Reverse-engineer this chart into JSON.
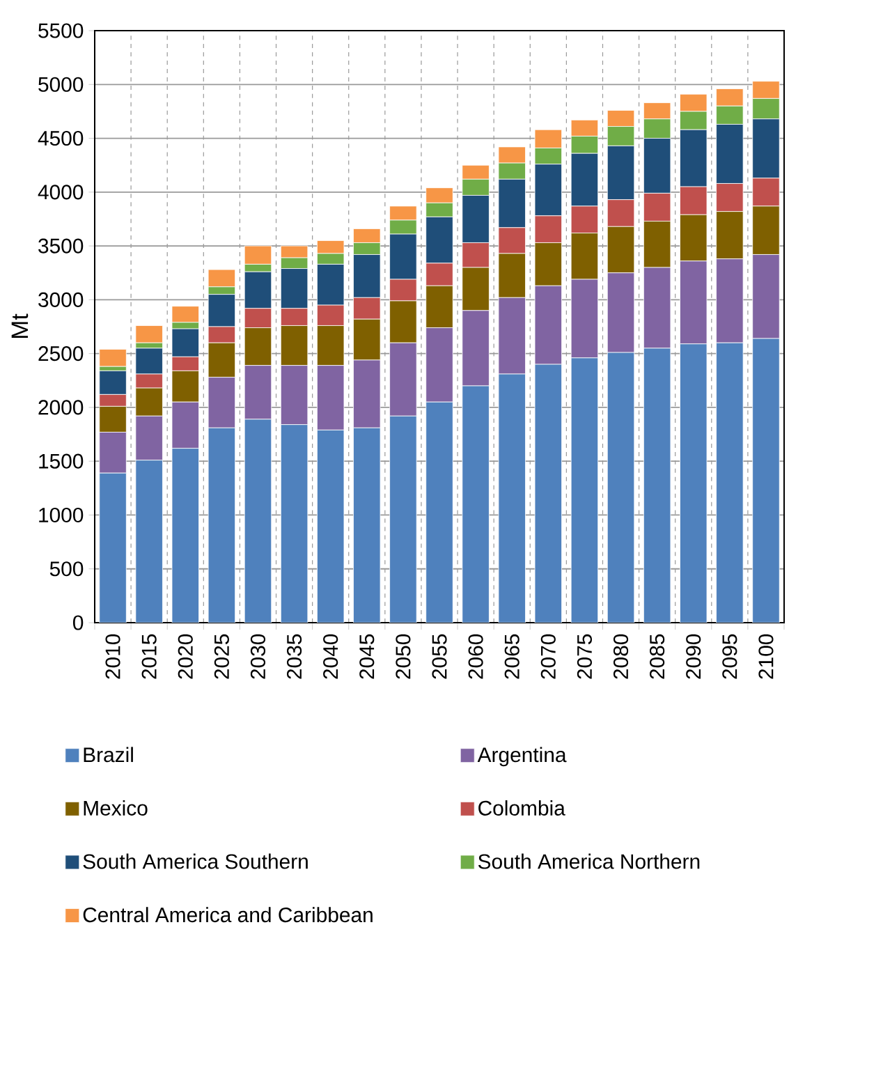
{
  "chart_data": {
    "type": "bar",
    "stacked": true,
    "ylabel": "Mt",
    "ylim": [
      0,
      5500
    ],
    "yticks": [
      0,
      500,
      1000,
      1500,
      2000,
      2500,
      3000,
      3500,
      4000,
      4500,
      5000,
      5500
    ],
    "grid": true,
    "legend": "bottom",
    "categories": [
      "2010",
      "2015",
      "2020",
      "2025",
      "2030",
      "2035",
      "2040",
      "2045",
      "2050",
      "2055",
      "2060",
      "2065",
      "2070",
      "2075",
      "2080",
      "2085",
      "2090",
      "2095",
      "2100"
    ],
    "series": [
      {
        "name": "Brazil",
        "color": "#4f81bd",
        "values": [
          1390,
          1510,
          1620,
          1810,
          1890,
          1840,
          1790,
          1810,
          1920,
          2050,
          2200,
          2310,
          2400,
          2460,
          2510,
          2550,
          2590,
          2600,
          2640
        ]
      },
      {
        "name": "Argentina",
        "color": "#8064a2",
        "values": [
          380,
          410,
          430,
          470,
          500,
          550,
          600,
          630,
          680,
          690,
          700,
          710,
          730,
          730,
          740,
          750,
          770,
          780,
          780
        ]
      },
      {
        "name": "Mexico",
        "color": "#7f6000",
        "values": [
          240,
          260,
          290,
          320,
          350,
          370,
          370,
          380,
          390,
          390,
          400,
          410,
          400,
          430,
          430,
          430,
          430,
          440,
          450
        ]
      },
      {
        "name": "Colombia",
        "color": "#c0504d",
        "values": [
          110,
          130,
          130,
          150,
          180,
          160,
          190,
          200,
          200,
          210,
          230,
          240,
          250,
          250,
          250,
          260,
          260,
          260,
          260
        ]
      },
      {
        "name": "South America Southern",
        "color": "#1f4e79",
        "values": [
          220,
          240,
          260,
          300,
          340,
          370,
          380,
          400,
          420,
          430,
          440,
          450,
          480,
          490,
          500,
          510,
          530,
          550,
          550
        ]
      },
      {
        "name": "South America Northern",
        "color": "#70ad47",
        "values": [
          40,
          50,
          60,
          70,
          70,
          100,
          100,
          110,
          130,
          130,
          150,
          150,
          150,
          160,
          180,
          180,
          170,
          170,
          190
        ]
      },
      {
        "name": "Central America and Caribbean",
        "color": "#f79646",
        "values": [
          160,
          160,
          150,
          160,
          170,
          110,
          120,
          130,
          130,
          140,
          130,
          150,
          170,
          150,
          150,
          150,
          160,
          160,
          160
        ]
      }
    ]
  }
}
